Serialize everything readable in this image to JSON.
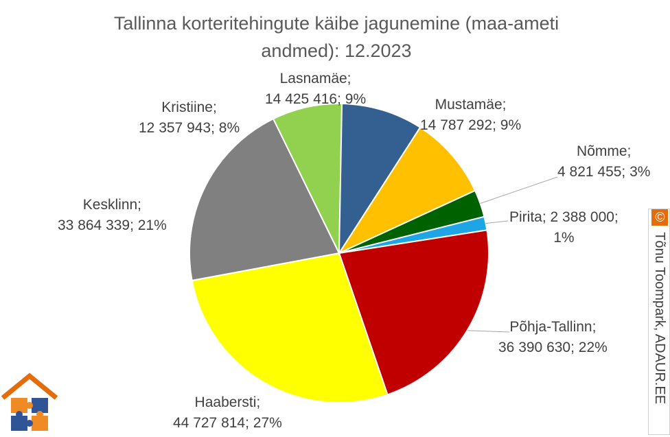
{
  "chart_data": {
    "type": "pie",
    "title": "Tallinna korteritehingute käibe jagunemine (maa-ameti andmed): 12.2023",
    "title_lines": [
      "Tallinna korteritehingute käibe jagunemine (maa-ameti",
      "andmed): 12.2023"
    ],
    "legend": "none",
    "slices": [
      {
        "name": "Mustamäe",
        "value": 14787292,
        "percent": "9%",
        "color": "#FFC000",
        "label_lines": [
          "Mustamäe;",
          "14 787 292; 9%"
        ]
      },
      {
        "name": "Nõmme",
        "value": 4821455,
        "percent": "3%",
        "color": "#006100",
        "label_lines": [
          "Nõmme;",
          "4 821 455; 3%"
        ]
      },
      {
        "name": "Pirita",
        "value": 2388000,
        "percent": "1%",
        "color": "#1EA5E6",
        "label_lines": [
          "Pirita; 2 388 000;",
          "1%"
        ]
      },
      {
        "name": "Põhja-Tallinn",
        "value": 36390630,
        "percent": "22%",
        "color": "#C00000",
        "label_lines": [
          "Põhja-Tallinn;",
          "36 390 630; 22%"
        ]
      },
      {
        "name": "Haabersti",
        "value": 44727814,
        "percent": "27%",
        "color": "#FFFF00",
        "label_lines": [
          "Haabersti;",
          "44 727 814; 27%"
        ]
      },
      {
        "name": "Kesklinn",
        "value": 33864339,
        "percent": "21%",
        "color": "#808080",
        "label_lines": [
          "Kesklinn;",
          "33 864 339; 21%"
        ]
      },
      {
        "name": "Kristiine",
        "value": 12357943,
        "percent": "8%",
        "color": "#92D050",
        "label_lines": [
          "Kristiine;",
          "12 357 943; 8%"
        ]
      },
      {
        "name": "Lasnamäe",
        "value": 14425416,
        "percent": "9%",
        "color": "#335F91",
        "label_lines": [
          "Lasnamäe;",
          "14 425 416; 9%"
        ]
      }
    ]
  },
  "credit": {
    "symbol": "©",
    "text": " Tõnu Toompark, ADAUR.EE"
  },
  "logo": {
    "icon": "house-puzzle-icon",
    "colors": {
      "roof": "#E46C0A",
      "piece_orange": "#F08A24",
      "piece_blue": "#2F5597"
    }
  }
}
